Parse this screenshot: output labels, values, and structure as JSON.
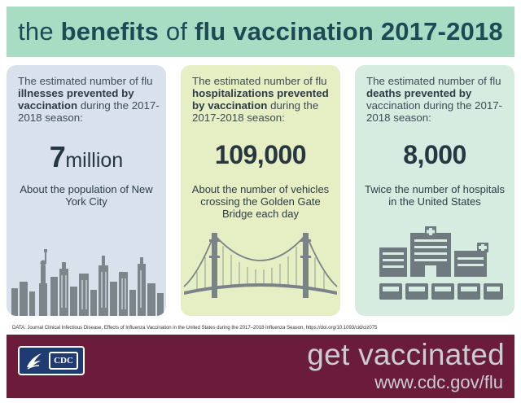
{
  "title": {
    "part1": "the ",
    "part2": "benefits",
    "part3": " of ",
    "part4": "flu vaccination 2017-2018"
  },
  "cards": [
    {
      "text_a": "The estimated number of flu ",
      "text_bold": "illnesses prevented by vaccination",
      "text_b": " during the 2017-2018 season:",
      "number": "7",
      "unit": "million",
      "description": "About the population of New York City",
      "icon": "city-skyline-icon"
    },
    {
      "text_a": "The estimated number of flu ",
      "text_bold": "hospitalizations prevented by vaccination",
      "text_b": " during the 2017-2018 season:",
      "number": "109,000",
      "unit": "",
      "description": "About the number of vehicles crossing the Golden Gate Bridge each day",
      "icon": "golden-gate-bridge-icon"
    },
    {
      "text_a": "The estimated number of flu ",
      "text_bold": "deaths prevented by",
      "text_b": " vaccination during the 2017-2018 season:",
      "number": "8,000",
      "unit": "",
      "description": "Twice the number of hospitals in the United States",
      "icon": "hospital-icon"
    }
  ],
  "source": "DATA: Journal Clinical Infectious Disease, Effects of Influenza Vaccination in the United States during the 2017–2018 Influenza Season, https://doi.org/10.1093/cid/ciz075",
  "footer": {
    "logo_text": "CDC",
    "tagline": "get vaccinated",
    "url": "www.cdc.gov/flu"
  },
  "colors": {
    "title_bg": "#a8ddc4",
    "footer_bg": "#6b1c3b",
    "card1_bg": "#d9e2ec",
    "card2_bg": "#e6eec4",
    "card3_bg": "#d6ece1"
  }
}
